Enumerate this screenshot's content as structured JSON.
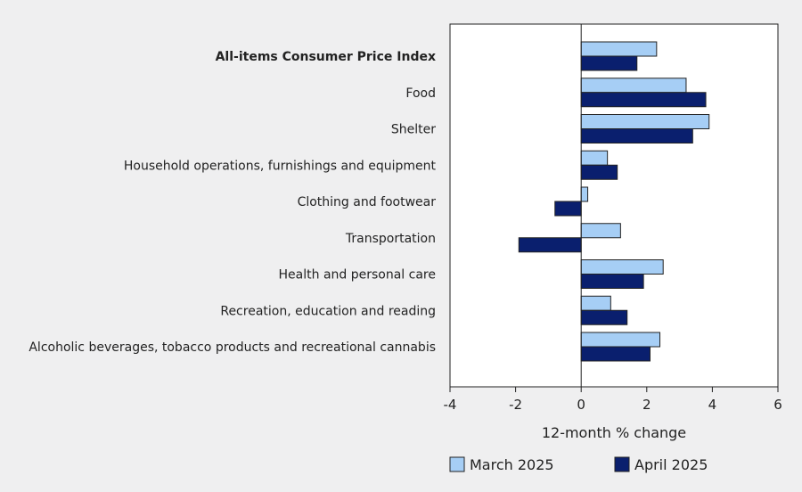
{
  "chart_data": {
    "type": "bar",
    "orientation": "horizontal",
    "categories": [
      "All-items Consumer Price Index",
      "Food",
      "Shelter",
      "Household operations, furnishings and equipment",
      "Clothing and footwear",
      "Transportation",
      "Health and personal care",
      "Recreation, education and reading",
      "Alcoholic beverages, tobacco products and recreational cannabis"
    ],
    "series": [
      {
        "name": "March 2025",
        "color": "#a6cef5",
        "values": [
          2.3,
          3.2,
          3.9,
          0.8,
          0.2,
          1.2,
          2.5,
          0.9,
          2.4
        ]
      },
      {
        "name": "April 2025",
        "color": "#0a1f6e",
        "values": [
          1.7,
          3.8,
          3.4,
          1.1,
          -0.8,
          -1.9,
          1.9,
          1.4,
          2.1
        ]
      }
    ],
    "xlabel": "12-month % change",
    "xlim": [
      -4,
      6
    ],
    "xticks": [
      -4,
      -2,
      0,
      2,
      4,
      6
    ],
    "legend_position": "bottom",
    "grid": false
  }
}
